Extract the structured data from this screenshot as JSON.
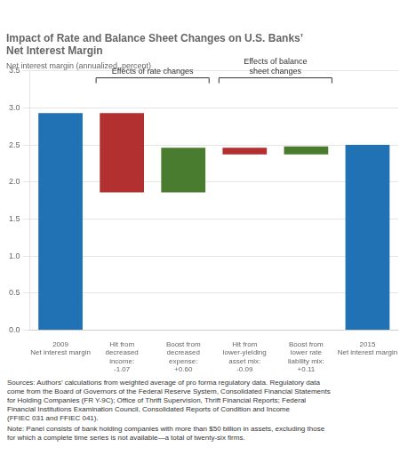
{
  "chart_data": {
    "type": "waterfall",
    "title": "Impact of Rate and Balance Sheet Changes on U.S. Banks’\nNet Interest Margin",
    "ylabel": "Net interest margin (annualized, percent)",
    "categories": [
      "2009\nNet interest margin",
      "Hit from\ndecreased\nincome:\n-1.07",
      "Boost from\ndecreased\nexpense:\n+0.60",
      "Hit from\nlower-yielding\nasset mix:\n-0.09",
      "Boost from\nlower rate\nliability mix:\n+0.11",
      "2015\nNet interest margin"
    ],
    "values": [
      2.93,
      [
        1.86,
        2.93
      ],
      [
        1.86,
        2.46
      ],
      [
        2.37,
        2.46
      ],
      [
        2.37,
        2.48
      ],
      2.5
    ],
    "colors": [
      "#2171b5",
      "#b23030",
      "#4a7c2f",
      "#b23030",
      "#4a7c2f",
      "#2171b5"
    ],
    "ylim": [
      0,
      3.5
    ],
    "yticks": [
      {
        "value": 0,
        "label": "0.0"
      },
      0.5,
      {
        "value": 1.0,
        "label": "1.0"
      },
      1.5,
      {
        "value": 2.0,
        "label": "2.0"
      },
      2.5,
      {
        "value": 3.0,
        "label": "3.0"
      },
      3.5
    ],
    "grid": true,
    "annotations": [
      {
        "text": "Effects of rate changes",
        "categories": [
          "Hit from\ndecreased\nincome:\n-1.07",
          "Boost from\ndecreased\nexpense:\n+0.60"
        ]
      },
      {
        "text": "Effects of balance\nsheet changes",
        "categories": [
          "Hit from\nlower-yielding\nasset mix:\n-0.09",
          "Boost from\nlower rate\nliability mix:\n+0.11"
        ]
      }
    ],
    "source": "Sources: Authors’ calculations from weighted average of pro forma regulatory data. Regulatory data\ncome from the Board of Governors of the Federal Reserve System, Consolidated Financial Statements\nfor Holding Companies (FR Y-9C); Office of Thrift Supervision, Thrift Financial Reports; Federal\nFinancial Institutions Examination Council, Consolidated Reports of Condition and Income\n(FFIEC 031 and FFIEC 041).",
    "note": "Note: Panel consists of bank holding companies with more than $50 billion in assets, excluding those\nfor which a complete time series is not available—a total of twenty-six firms."
  }
}
